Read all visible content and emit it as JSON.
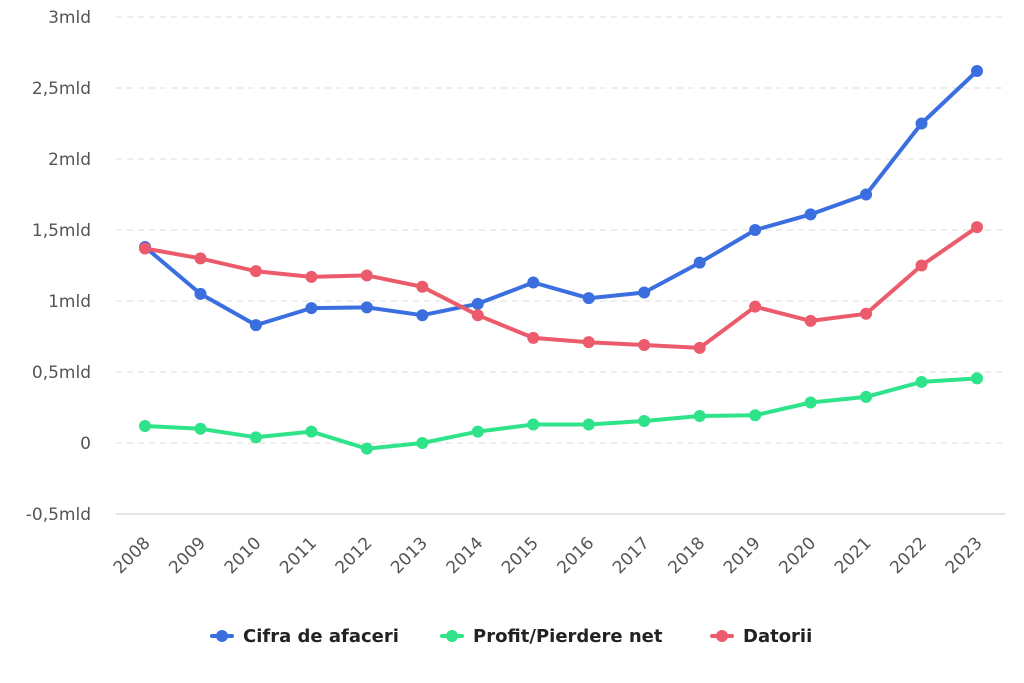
{
  "chart_data": {
    "type": "line",
    "title": "",
    "xlabel": "",
    "ylabel": "",
    "categories": [
      "2008",
      "2009",
      "2010",
      "2011",
      "2012",
      "2013",
      "2014",
      "2015",
      "2016",
      "2017",
      "2018",
      "2019",
      "2020",
      "2021",
      "2022",
      "2023"
    ],
    "y_ticks": [
      {
        "value": -0.5,
        "label": "-0,5mld"
      },
      {
        "value": 0,
        "label": "0"
      },
      {
        "value": 0.5,
        "label": "0,5mld"
      },
      {
        "value": 1,
        "label": "1mld"
      },
      {
        "value": 1.5,
        "label": "1,5mld"
      },
      {
        "value": 2,
        "label": "2mld"
      },
      {
        "value": 2.5,
        "label": "2,5mld"
      },
      {
        "value": 3,
        "label": "3mld"
      }
    ],
    "ylim": [
      -0.5,
      3
    ],
    "grid": true,
    "legend_position": "bottom-center",
    "series": [
      {
        "name": "Cifra de afaceri",
        "color": "#3b6fe0",
        "values": [
          1.38,
          1.05,
          0.83,
          0.95,
          0.955,
          0.9,
          0.98,
          1.13,
          1.02,
          1.06,
          1.27,
          1.5,
          1.61,
          1.75,
          2.25,
          2.62
        ]
      },
      {
        "name": "Profit/Pierdere net",
        "color": "#2fe38a",
        "values": [
          0.12,
          0.1,
          0.04,
          0.08,
          -0.04,
          0.0,
          0.08,
          0.13,
          0.13,
          0.155,
          0.19,
          0.195,
          0.285,
          0.325,
          0.43,
          0.455
        ]
      },
      {
        "name": "Datorii",
        "color": "#ec5b6b",
        "values": [
          1.37,
          1.3,
          1.21,
          1.17,
          1.18,
          1.1,
          0.9,
          0.74,
          0.71,
          0.69,
          0.67,
          0.96,
          0.86,
          0.91,
          1.25,
          1.52
        ]
      }
    ]
  }
}
